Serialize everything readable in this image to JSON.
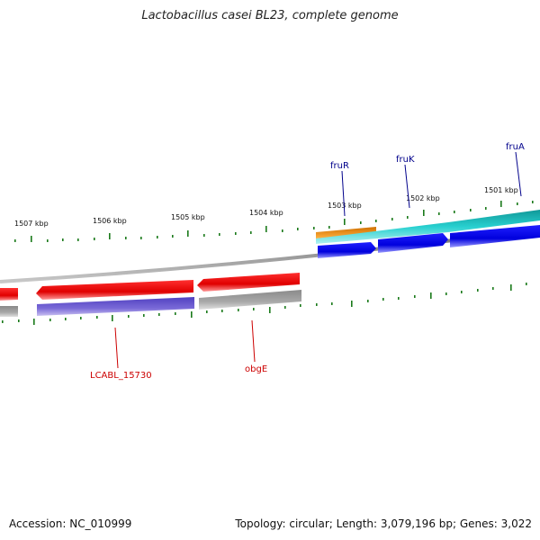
{
  "title": "Lactobacillus casei BL23, complete genome",
  "footer": {
    "accession": "Accession: NC_010999",
    "summary": "Topology: circular; Length: 3,079,196 bp; Genes: 3,022"
  },
  "ticks": [
    "1507 kbp",
    "1506 kbp",
    "1505 kbp",
    "1504 kbp",
    "1503 kbp",
    "1502 kbp",
    "1501 kbp"
  ],
  "genes": {
    "fruR": "fruR",
    "fruK": "fruK",
    "fruA": "fruA",
    "lcabl": "LCABL_15730",
    "obgE": "obgE"
  },
  "colors": {
    "forward_cds": "#0000ee",
    "reverse_cds": "#ee0000",
    "forward_label": "#00008b",
    "reverse_label": "#cc0000",
    "teal": "#20c8c8",
    "orange": "#f08a10",
    "purple": "#6a5acd",
    "gray": "#a0a0a0",
    "tick": "#1a7a1a",
    "backbone": "#808080"
  }
}
